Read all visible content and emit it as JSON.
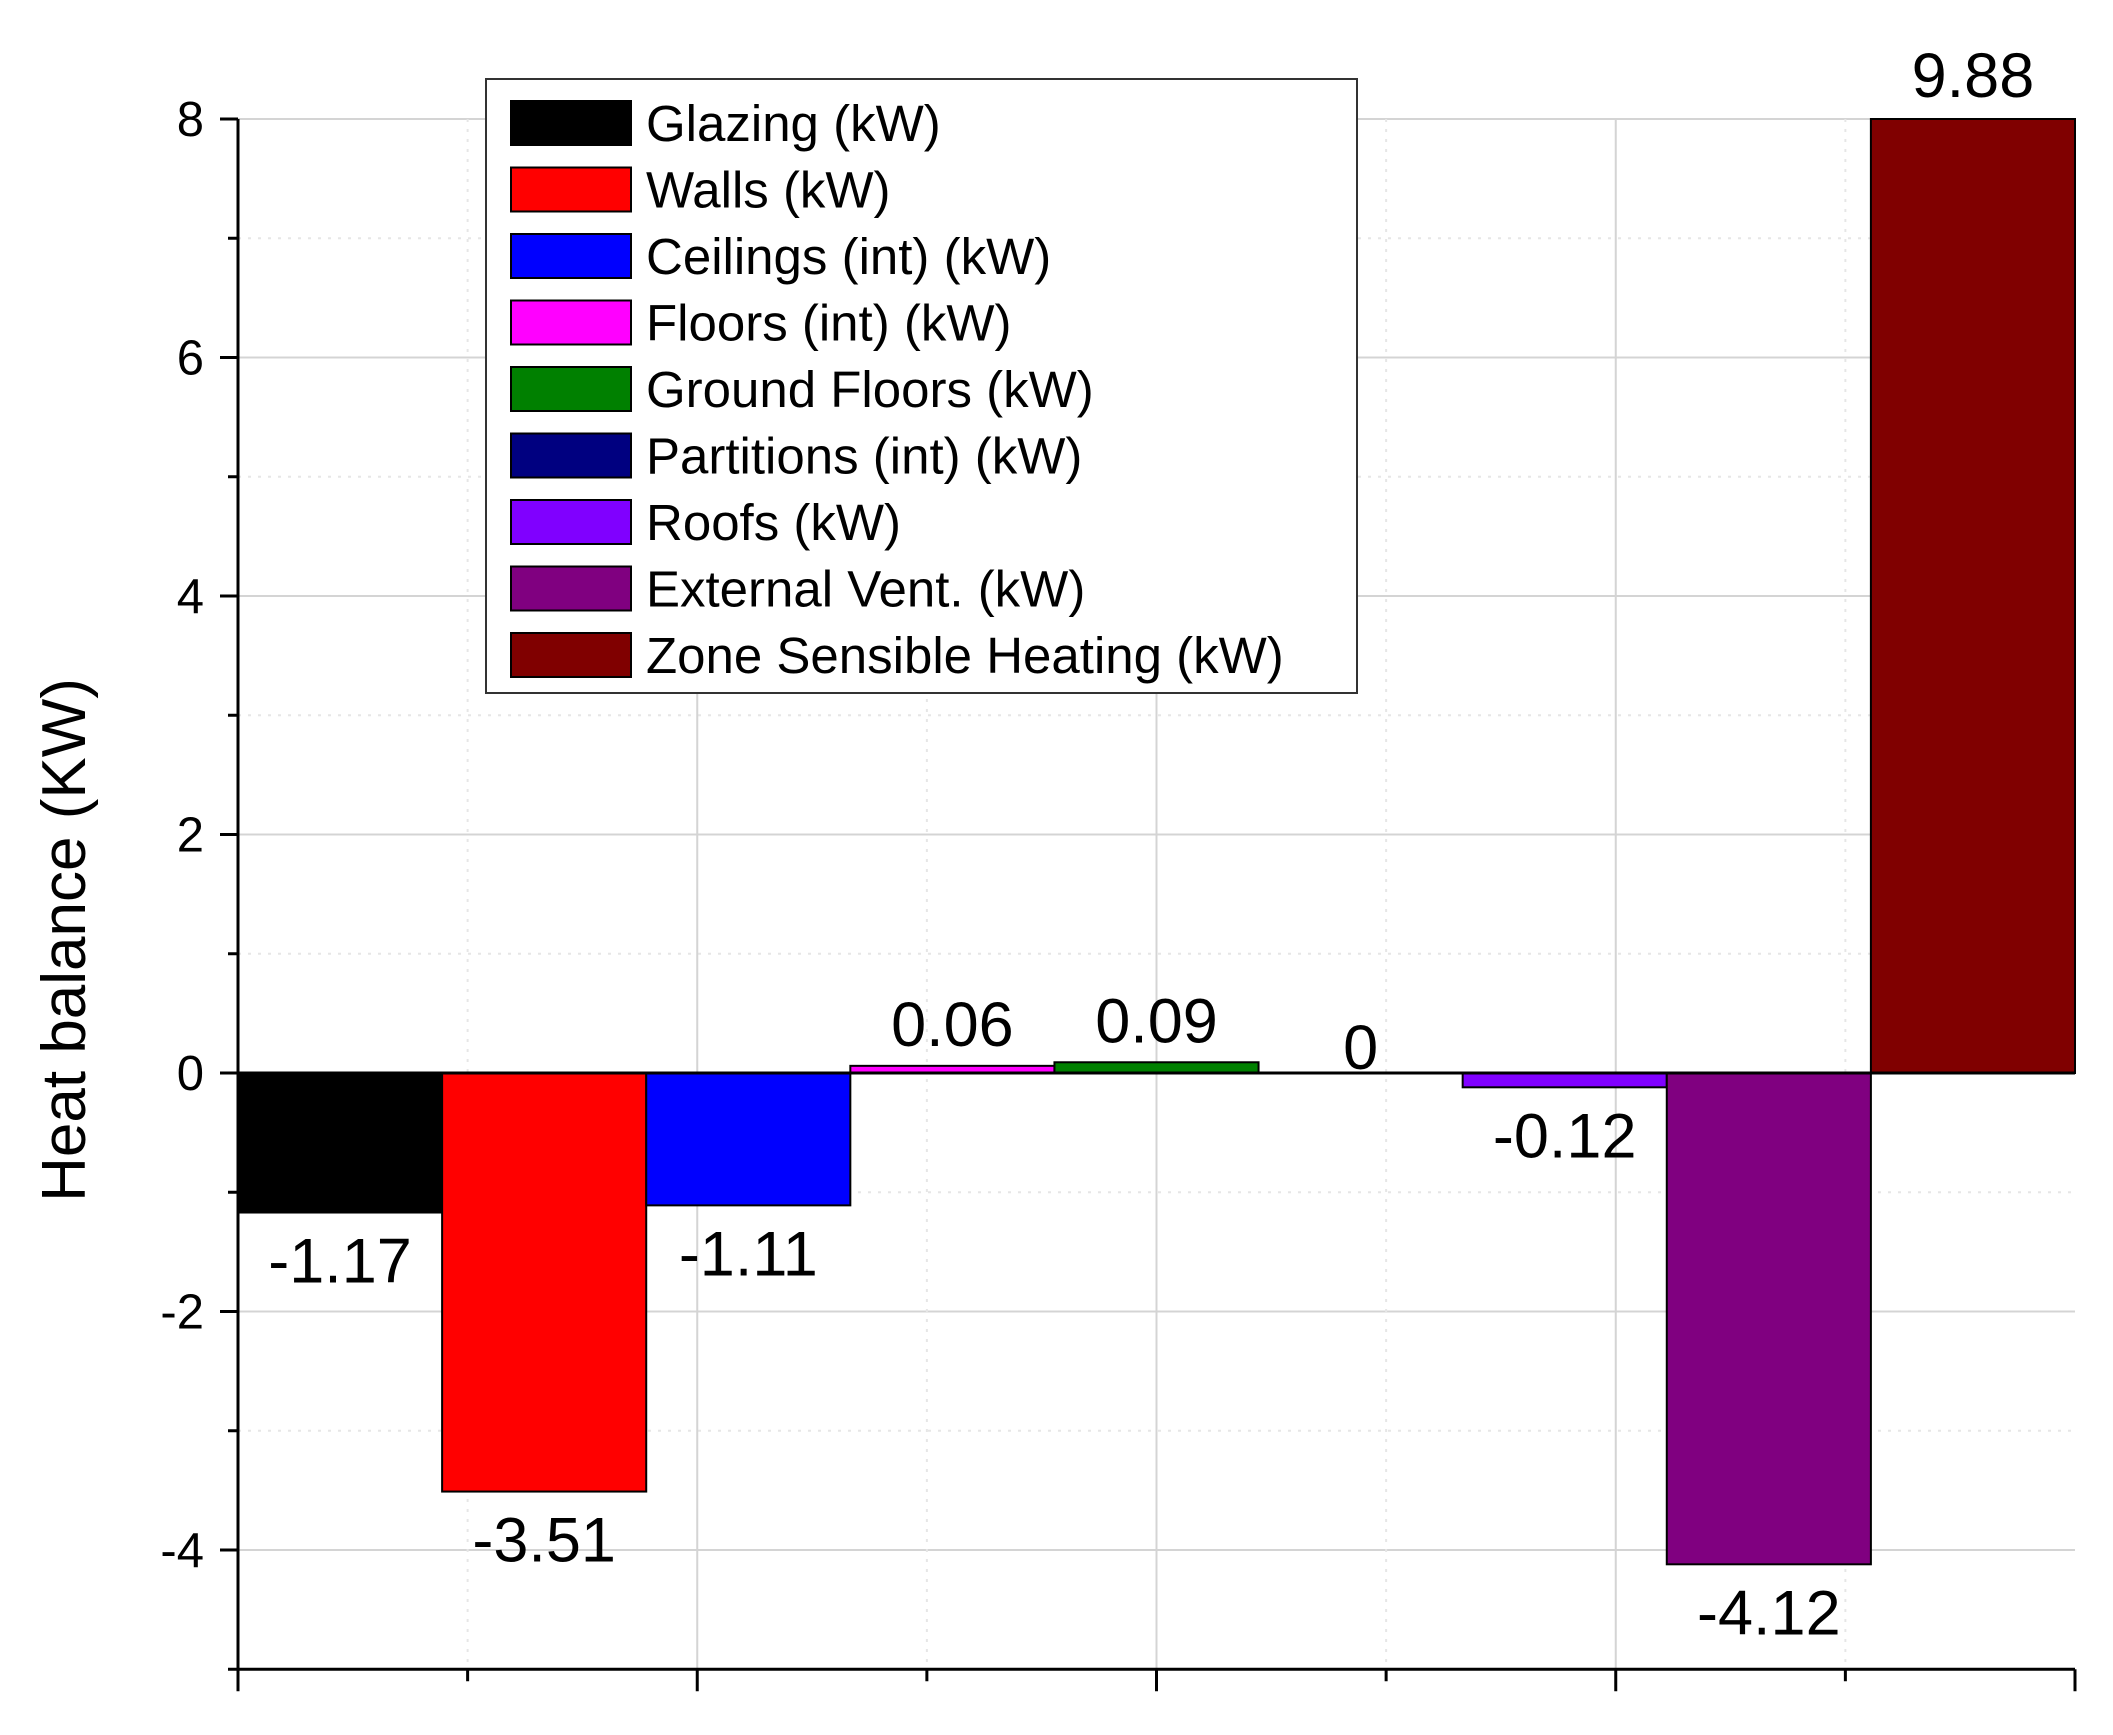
{
  "chart_data": {
    "type": "bar",
    "xlabel": "",
    "ylabel": "Heat balance (KW)",
    "ylim": [
      -5.0,
      8.0
    ],
    "yticks": [
      -4,
      -2,
      0,
      2,
      4,
      6,
      8
    ],
    "grid": true,
    "legend_position": "top-left",
    "series": [
      {
        "name": "Glazing (kW)",
        "value": -1.17,
        "label": "-1.17",
        "color": "#000000"
      },
      {
        "name": "Walls (kW)",
        "value": -3.51,
        "label": "-3.51",
        "color": "#ff0000"
      },
      {
        "name": "Ceilings (int) (kW)",
        "value": -1.11,
        "label": "-1.11",
        "color": "#0000ff"
      },
      {
        "name": "Floors (int) (kW)",
        "value": 0.06,
        "label": "0.06",
        "color": "#ff00ff"
      },
      {
        "name": "Ground Floors (kW)",
        "value": 0.09,
        "label": "0.09",
        "color": "#008000"
      },
      {
        "name": "Partitions (int) (kW)",
        "value": 0,
        "label": "0",
        "color": "#000080"
      },
      {
        "name": "Roofs (kW)",
        "value": -0.12,
        "label": "-0.12",
        "color": "#8000ff"
      },
      {
        "name": "External Vent. (kW)",
        "value": -4.12,
        "label": "-4.12",
        "color": "#800080"
      },
      {
        "name": "Zone Sensible Heating (kW)",
        "value": 9.88,
        "label": "9.88",
        "color": "#800000"
      }
    ]
  }
}
